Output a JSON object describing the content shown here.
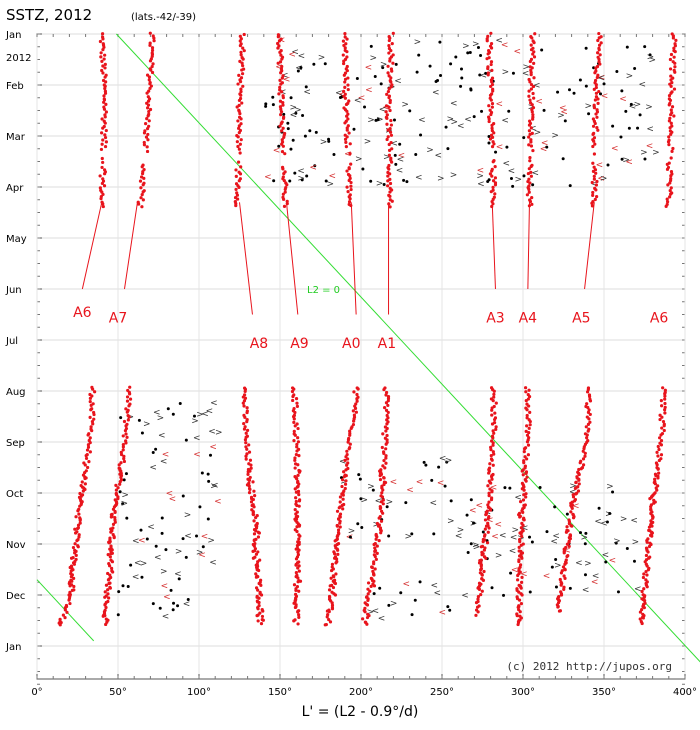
{
  "chart_data": {
    "type": "scatter",
    "title": "SSTZ, 2012",
    "subtitle": "(lats.-42/-39)",
    "xlabel": "L' = (L2 - 0.9°/d)",
    "ylabel": "",
    "xlim": [
      0,
      400
    ],
    "x_ticks": [
      0,
      50,
      100,
      150,
      200,
      250,
      300,
      350,
      400
    ],
    "x_tick_labels": [
      "0°",
      "50°",
      "100°",
      "150°",
      "200°",
      "250°",
      "300°",
      "350°",
      "400°"
    ],
    "y_months": [
      "Jan",
      "Feb",
      "Mar",
      "Apr",
      "May",
      "Jun",
      "Jul",
      "Aug",
      "Sep",
      "Oct",
      "Nov",
      "Dec",
      "Jan"
    ],
    "y_year_label": "2012",
    "y_direction": "time increases downward",
    "grid": true,
    "credit": "(c) 2012 http://jupos.org",
    "colors": {
      "tracks": "#e8141c",
      "other": "#000000",
      "l2_line": "#33dd33",
      "labels": "#e8141c"
    },
    "reference_line": {
      "label": "L2 = 0",
      "points": [
        [
          49,
          0
        ],
        [
          412,
          12.4
        ]
      ],
      "continuation": [
        [
          0,
          10.7
        ],
        [
          35,
          11.9
        ]
      ]
    },
    "features": [
      {
        "name": "A6",
        "track": [
          [
            40,
            0
          ],
          [
            42,
            1.4
          ],
          [
            40,
            3.3
          ],
          [
            33,
            7.9
          ],
          [
            26,
            9.3
          ],
          [
            21,
            11.0
          ],
          [
            14,
            11.6
          ]
        ]
      },
      {
        "name": "A7",
        "track": [
          [
            71,
            0
          ],
          [
            69,
            1.4
          ],
          [
            64,
            3.3
          ],
          [
            55,
            7.8
          ],
          [
            47,
            9.6
          ],
          [
            42,
            11.6
          ]
        ]
      },
      {
        "name": "A8",
        "track": [
          [
            127,
            0
          ],
          [
            125,
            1.4
          ],
          [
            124,
            3.3
          ],
          [
            129,
            8.0
          ],
          [
            135,
            9.6
          ],
          [
            138,
            11.6
          ]
        ]
      },
      {
        "name": "A9",
        "track": [
          [
            150,
            0
          ],
          [
            151,
            1.4
          ],
          [
            153,
            3.3
          ],
          [
            160,
            7.8
          ],
          [
            161,
            9.6
          ],
          [
            160,
            11.6
          ]
        ]
      },
      {
        "name": "A0",
        "track": [
          [
            190,
            0
          ],
          [
            191,
            1.4
          ],
          [
            193,
            3.3
          ],
          [
            197,
            7.2
          ],
          [
            186,
            9.6
          ],
          [
            180,
            11.6
          ]
        ]
      },
      {
        "name": "A1",
        "track": [
          [
            219,
            0
          ],
          [
            217,
            1.4
          ],
          [
            218,
            3.3
          ],
          [
            215,
            7.8
          ],
          [
            212,
            9.5
          ],
          [
            202,
            11.6
          ]
        ]
      },
      {
        "name": "A3",
        "track": [
          [
            279,
            0
          ],
          [
            280,
            1.4
          ],
          [
            282,
            3.3
          ],
          [
            282,
            7.8
          ],
          [
            278,
            9.6
          ],
          [
            272,
            11.4
          ]
        ]
      },
      {
        "name": "A4",
        "track": [
          [
            306,
            0
          ],
          [
            305,
            1.4
          ],
          [
            304,
            3.3
          ],
          [
            303,
            7.8
          ],
          [
            299,
            9.6
          ],
          [
            297,
            11.6
          ]
        ]
      },
      {
        "name": "A5",
        "track": [
          [
            347,
            0
          ],
          [
            345,
            1.4
          ],
          [
            344,
            3.3
          ],
          [
            340,
            7.8
          ],
          [
            329,
            9.6
          ],
          [
            322,
            11.3
          ]
        ]
      },
      {
        "name": "A6",
        "track": [
          [
            393,
            0
          ],
          [
            386,
            7.7
          ],
          [
            379,
            9.6
          ],
          [
            373,
            11.6
          ]
        ]
      }
    ],
    "labels": [
      {
        "name": "A6",
        "x": 28,
        "y": 5.2,
        "pointer": [
          [
            28,
            5.0
          ],
          [
            40,
            3.3
          ]
        ]
      },
      {
        "name": "A7",
        "x": 50,
        "y": 5.3,
        "pointer": [
          [
            54,
            5.0
          ],
          [
            62,
            3.3
          ]
        ]
      },
      {
        "name": "A8",
        "x": 137,
        "y": 5.8,
        "pointer": [
          [
            133,
            5.5
          ],
          [
            125,
            3.3
          ]
        ]
      },
      {
        "name": "A9",
        "x": 162,
        "y": 5.8,
        "pointer": [
          [
            161,
            5.5
          ],
          [
            154,
            3.3
          ]
        ]
      },
      {
        "name": "A0",
        "x": 194,
        "y": 5.8,
        "pointer": [
          [
            197,
            5.5
          ],
          [
            194,
            3.3
          ]
        ]
      },
      {
        "name": "A1",
        "x": 216,
        "y": 5.8,
        "pointer": [
          [
            217,
            5.5
          ],
          [
            217,
            3.3
          ]
        ]
      },
      {
        "name": "A3",
        "x": 283,
        "y": 5.3,
        "pointer": [
          [
            283,
            5.0
          ],
          [
            281,
            3.3
          ]
        ]
      },
      {
        "name": "A4",
        "x": 303,
        "y": 5.3,
        "pointer": [
          [
            303,
            5.0
          ],
          [
            304,
            3.3
          ]
        ]
      },
      {
        "name": "A5",
        "x": 336,
        "y": 5.3,
        "pointer": [
          [
            338,
            5.0
          ],
          [
            344,
            3.3
          ]
        ]
      },
      {
        "name": "A6",
        "x": 384,
        "y": 5.3,
        "pointer": [],
        "color": "#e8141c"
      }
    ],
    "black_clusters": [
      {
        "x": [
          50,
          110
        ],
        "y": [
          7.2,
          11.6
        ]
      },
      {
        "x": [
          185,
          260
        ],
        "y": [
          8.3,
          9.9
        ]
      },
      {
        "x": [
          200,
          265
        ],
        "y": [
          10.7,
          11.5
        ]
      },
      {
        "x": [
          265,
          370
        ],
        "y": [
          8.8,
          11.1
        ]
      },
      {
        "x": [
          140,
          380
        ],
        "y": [
          0.1,
          3.0
        ]
      }
    ]
  }
}
